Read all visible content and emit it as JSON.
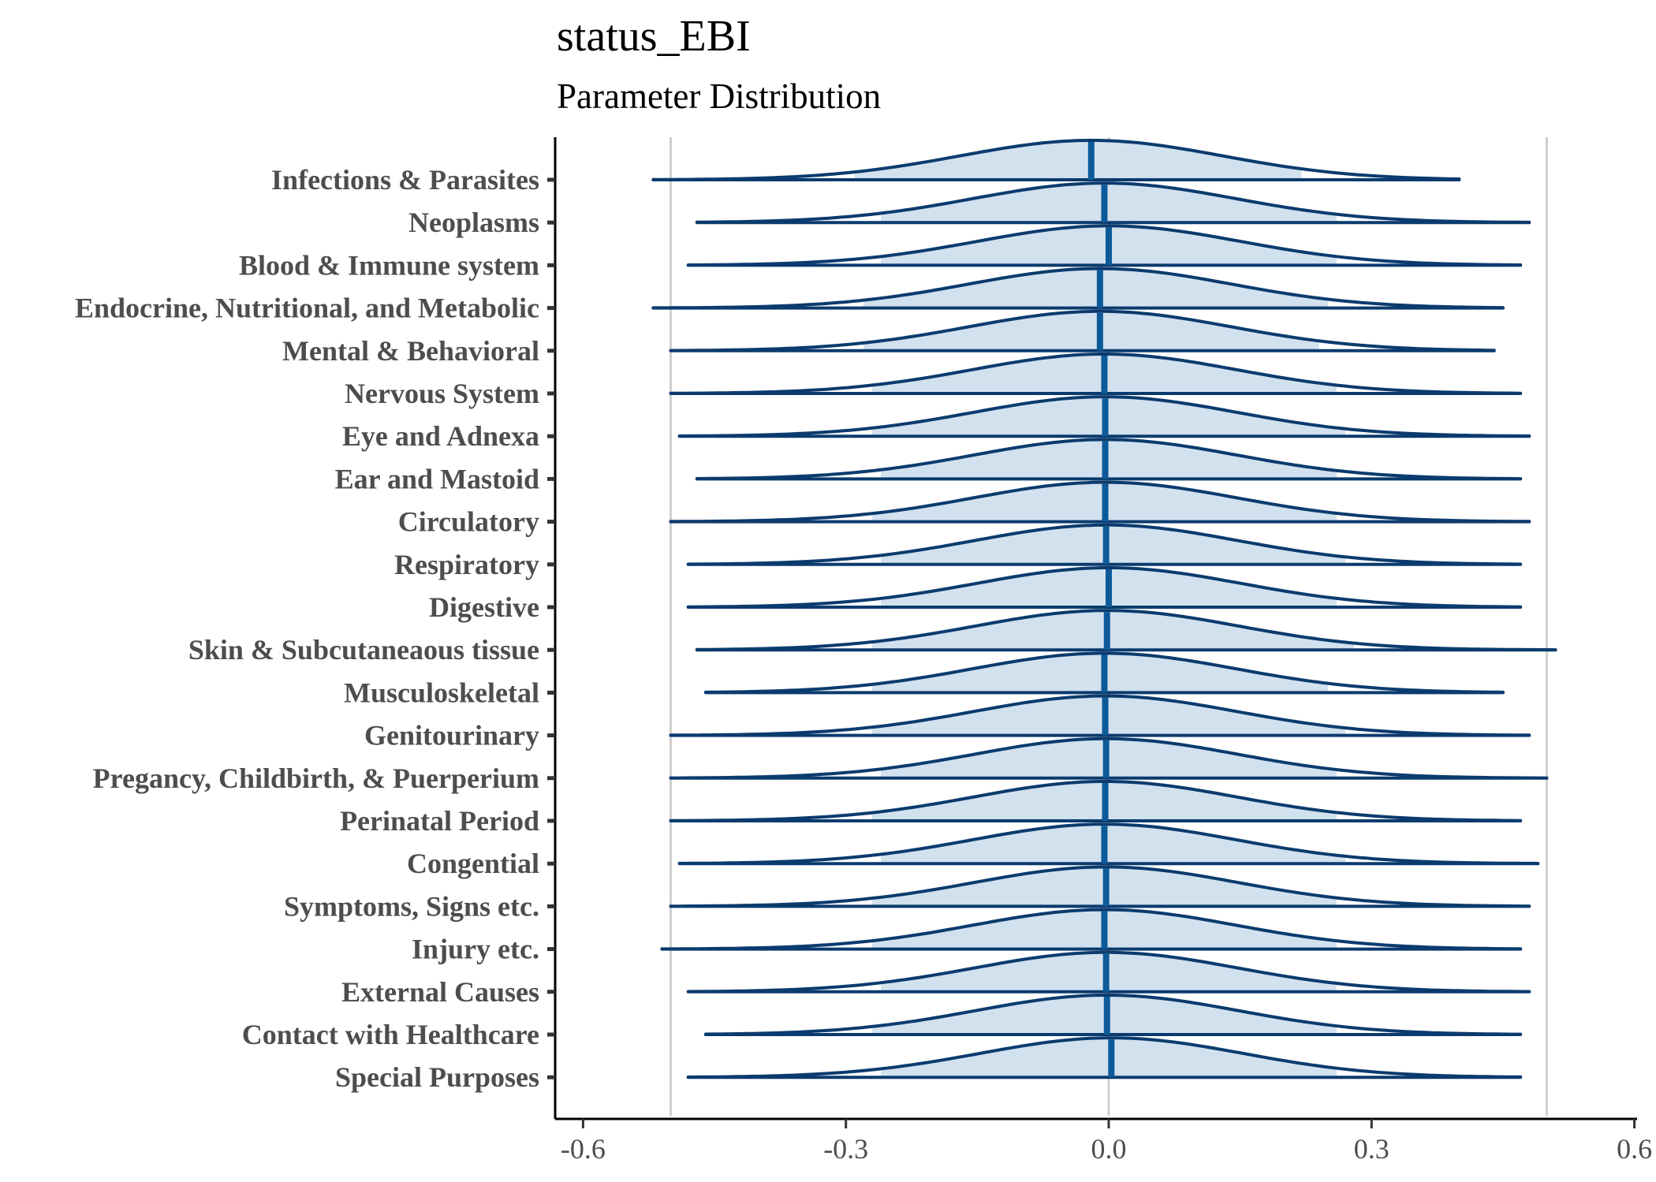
{
  "chart_data": {
    "type": "ridgeline",
    "title": "status_EBI",
    "subtitle": "Parameter Distribution",
    "xlim": [
      -0.6,
      0.6
    ],
    "x_ticks": [
      -0.6,
      -0.3,
      0.0,
      0.3,
      0.6
    ],
    "x_tick_labels": [
      "-0.6",
      "-0.3",
      "0.0",
      "0.3",
      "0.6"
    ],
    "reference_lines": [
      -0.5,
      0.0,
      0.5
    ],
    "grid": false,
    "colors": {
      "outline": "#0b3b6e",
      "fill": "#d2e1ee",
      "median": "#0d5a99",
      "reference": "#d0d0d0",
      "axis": "#000000",
      "label": "#4d4d4d"
    },
    "categories": [
      "Infections & Parasites",
      "Neoplasms",
      "Blood & Immune system",
      "Endocrine, Nutritional, and Metabolic",
      "Mental & Behavioral",
      "Nervous System",
      "Eye and Adnexa",
      "Ear and Mastoid",
      "Circulatory",
      "Respiratory",
      "Digestive",
      "Skin & Subcutaneaous tissue",
      "Musculoskeletal",
      "Genitourinary",
      "Pregancy, Childbirth, & Puerperium",
      "Perinatal Period",
      "Congential",
      "Symptoms, Signs etc.",
      "Injury etc.",
      "External Causes",
      "Contact with Healthcare",
      "Special Purposes"
    ],
    "series": [
      {
        "median": -0.02,
        "min": -0.52,
        "max": 0.4,
        "ci_low": -0.29,
        "ci_high": 0.22
      },
      {
        "median": -0.005,
        "min": -0.47,
        "max": 0.48,
        "ci_low": -0.26,
        "ci_high": 0.26
      },
      {
        "median": 0.0,
        "min": -0.48,
        "max": 0.47,
        "ci_low": -0.26,
        "ci_high": 0.26
      },
      {
        "median": -0.01,
        "min": -0.52,
        "max": 0.45,
        "ci_low": -0.28,
        "ci_high": 0.25
      },
      {
        "median": -0.01,
        "min": -0.5,
        "max": 0.44,
        "ci_low": -0.28,
        "ci_high": 0.24
      },
      {
        "median": -0.005,
        "min": -0.5,
        "max": 0.47,
        "ci_low": -0.27,
        "ci_high": 0.26
      },
      {
        "median": -0.004,
        "min": -0.49,
        "max": 0.48,
        "ci_low": -0.27,
        "ci_high": 0.27
      },
      {
        "median": -0.004,
        "min": -0.47,
        "max": 0.47,
        "ci_low": -0.26,
        "ci_high": 0.26
      },
      {
        "median": -0.004,
        "min": -0.5,
        "max": 0.48,
        "ci_low": -0.27,
        "ci_high": 0.26
      },
      {
        "median": -0.003,
        "min": -0.48,
        "max": 0.47,
        "ci_low": -0.26,
        "ci_high": 0.27
      },
      {
        "median": 0.0,
        "min": -0.48,
        "max": 0.47,
        "ci_low": -0.26,
        "ci_high": 0.26
      },
      {
        "median": -0.002,
        "min": -0.47,
        "max": 0.51,
        "ci_low": -0.27,
        "ci_high": 0.28
      },
      {
        "median": -0.005,
        "min": -0.46,
        "max": 0.45,
        "ci_low": -0.27,
        "ci_high": 0.25
      },
      {
        "median": -0.004,
        "min": -0.5,
        "max": 0.48,
        "ci_low": -0.27,
        "ci_high": 0.27
      },
      {
        "median": -0.003,
        "min": -0.5,
        "max": 0.5,
        "ci_low": -0.26,
        "ci_high": 0.26
      },
      {
        "median": -0.004,
        "min": -0.5,
        "max": 0.47,
        "ci_low": -0.27,
        "ci_high": 0.26
      },
      {
        "median": -0.005,
        "min": -0.49,
        "max": 0.49,
        "ci_low": -0.26,
        "ci_high": 0.27
      },
      {
        "median": -0.003,
        "min": -0.5,
        "max": 0.48,
        "ci_low": -0.27,
        "ci_high": 0.26
      },
      {
        "median": -0.005,
        "min": -0.51,
        "max": 0.47,
        "ci_low": -0.27,
        "ci_high": 0.26
      },
      {
        "median": -0.003,
        "min": -0.48,
        "max": 0.48,
        "ci_low": -0.26,
        "ci_high": 0.26
      },
      {
        "median": -0.002,
        "min": -0.46,
        "max": 0.47,
        "ci_low": -0.27,
        "ci_high": 0.26
      },
      {
        "median": 0.003,
        "min": -0.48,
        "max": 0.47,
        "ci_low": -0.26,
        "ci_high": 0.26
      }
    ]
  }
}
